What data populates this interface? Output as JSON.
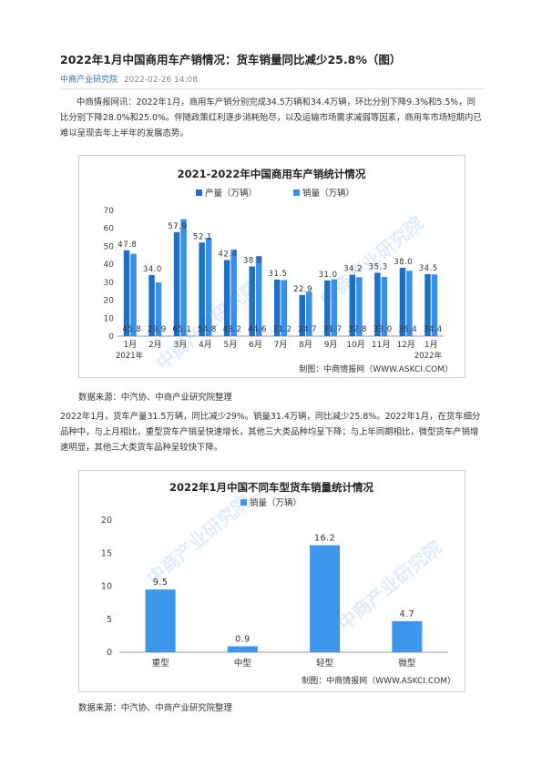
{
  "article": {
    "title": "2022年1月中国商用车产销情况：货车销量同比减少25.8%（图）",
    "source": "中商产业研究院",
    "date": "2022-02-26 14:08",
    "para1": "中商情报网讯：2022年1月，商用车产销分别完成34.5万辆和34.4万辆，环比分别下降9.3%和5.5%，同比分别下降28.0%和25.0%。伴随政策红利逐步消耗殆尽，以及运输市场需求减弱等因素，商用车市场短期内已难以呈现去年上半年的发展态势。",
    "source_note1": "数据来源：中汽协、中商产业研究院整理",
    "para2": "2022年1月，货车产量31.5万辆，同比减少29%。销量31.4万辆，同比减少25.8%。2022年1月，在货车细分品种中，与上月相比，重型货车产销呈快速增长，其他三大类品种均呈下降；与上年同期相比，微型货车产销增速明显，其他三大类货车品种呈较快下降。",
    "source_note2": "数据来源：中汽协、中商产业研究院整理",
    "watermark": "中商产业研究院"
  },
  "colors": {
    "production": "#1f6fc5",
    "sales": "#3a8fe6",
    "bar2": "#3c97ea",
    "title_blue": "#3a6fb0"
  },
  "chart_data": [
    {
      "type": "bar",
      "title": "2021-2022年中国商用车产销统计情况",
      "categories": [
        "1月",
        "2月",
        "3月",
        "4月",
        "5月",
        "6月",
        "7月",
        "8月",
        "9月",
        "10月",
        "11月",
        "12月",
        "1月"
      ],
      "year_labels": {
        "first": "2021年",
        "last": "2022年"
      },
      "series": [
        {
          "name": "产量（万辆）",
          "values": [
            47.8,
            34.0,
            57.9,
            52.1,
            42.4,
            38.8,
            31.5,
            22.9,
            31.0,
            34.2,
            35.3,
            38.0,
            34.5
          ]
        },
        {
          "name": "销量（万辆）",
          "values": [
            45.8,
            29.9,
            65.1,
            54.8,
            48.2,
            44.6,
            31.2,
            24.7,
            31.7,
            32.8,
            33.0,
            36.4,
            34.4
          ]
        }
      ],
      "ylim": [
        0,
        70
      ],
      "yticks": [
        0,
        10,
        20,
        30,
        40,
        50,
        60,
        70
      ],
      "legend": "top",
      "credit": "制图：中商情报网（WWW.ASKCI.COM）"
    },
    {
      "type": "bar",
      "title": "2022年1月中国不同车型货车销量统计情况",
      "categories": [
        "重型",
        "中型",
        "轻型",
        "微型"
      ],
      "series": [
        {
          "name": "销量（万辆）",
          "values": [
            9.5,
            0.9,
            16.2,
            4.7
          ]
        }
      ],
      "ylim": [
        0,
        20
      ],
      "yticks": [
        0,
        5,
        10,
        15,
        20
      ],
      "legend": "top",
      "credit": "制图：中商情报网（WWW.ASKCI.COM）"
    }
  ]
}
